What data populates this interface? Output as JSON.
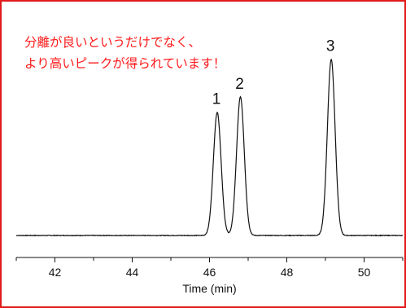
{
  "annotation": {
    "line1": "分離が良いというだけでなく、",
    "line2": "より高いピークが得られています！",
    "color": "#ff1a1a"
  },
  "frame_color": "#e11a1a",
  "chart_data": {
    "type": "line",
    "xlabel": "Time (min)",
    "ylabel": "",
    "xlim": [
      41.0,
      51.0
    ],
    "ylim": [
      0.0,
      1.1
    ],
    "xticks": [
      42,
      44,
      46,
      48,
      50
    ],
    "grid": false,
    "legend": "none",
    "baseline": 0.01,
    "peaks": [
      {
        "label": "1",
        "x": 46.2,
        "height": 0.72,
        "width": 0.1
      },
      {
        "label": "2",
        "x": 46.8,
        "height": 0.81,
        "width": 0.1
      },
      {
        "label": "3",
        "x": 49.15,
        "height": 1.03,
        "width": 0.1
      }
    ],
    "line_color": "#111111"
  }
}
